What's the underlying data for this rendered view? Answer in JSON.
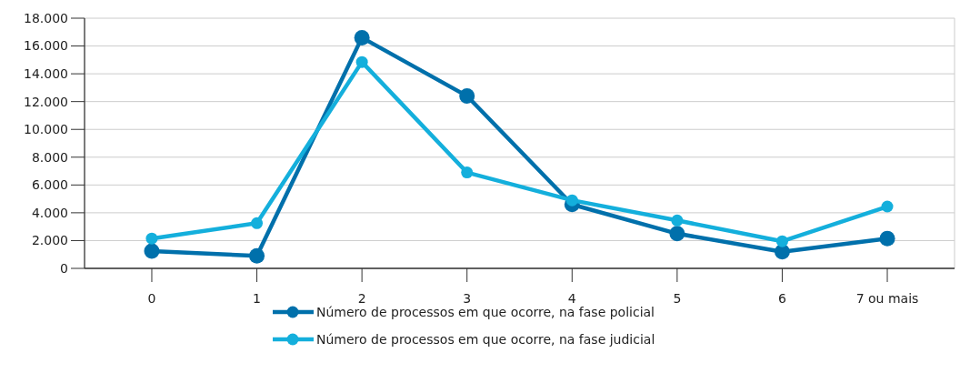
{
  "chart_data": {
    "type": "line",
    "categories": [
      "0",
      "1",
      "2",
      "3",
      "4",
      "5",
      "6",
      "7 ou mais"
    ],
    "series": [
      {
        "name": "Número de processos em que ocorre, na fase policial",
        "color": "#0070ab",
        "values": [
          1250,
          900,
          16600,
          12400,
          4600,
          2500,
          1200,
          2150
        ]
      },
      {
        "name": "Número de processos em que ocorre, na fase judicial",
        "color": "#14afdc",
        "values": [
          2150,
          3250,
          14850,
          6900,
          4900,
          3450,
          1950,
          4450
        ]
      }
    ],
    "ylim": [
      0,
      18000
    ],
    "yticks": [
      {
        "value": 0,
        "label": "0"
      },
      {
        "value": 2000,
        "label": "2.000"
      },
      {
        "value": 4000,
        "label": "4.000"
      },
      {
        "value": 6000,
        "label": "6.000"
      },
      {
        "value": 8000,
        "label": "8.000"
      },
      {
        "value": 10000,
        "label": "10.000"
      },
      {
        "value": 12000,
        "label": "12.000"
      },
      {
        "value": 14000,
        "label": "14.000"
      },
      {
        "value": 16000,
        "label": "16.000"
      },
      {
        "value": 18000,
        "label": "18.000"
      }
    ],
    "grid": "y",
    "legend": "bottom",
    "marker": "circle",
    "line_style": "solid"
  }
}
